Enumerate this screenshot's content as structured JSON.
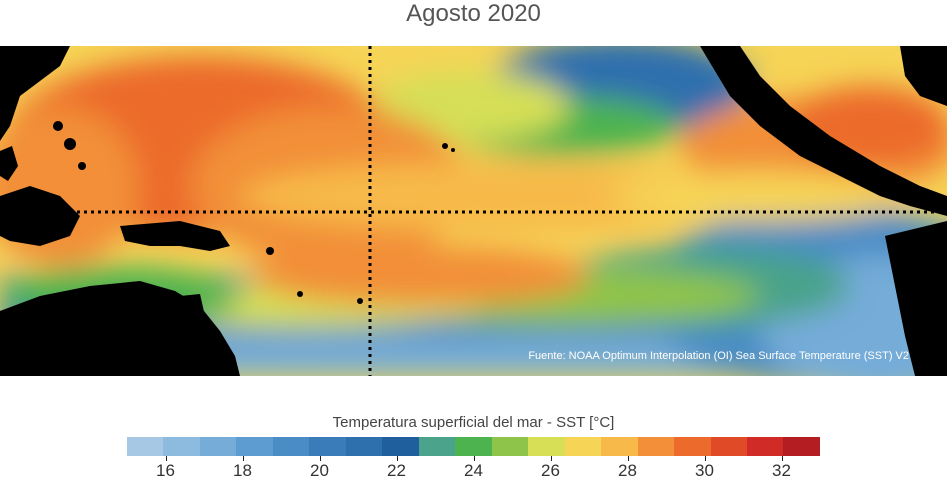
{
  "title": "Agosto 2020",
  "map": {
    "source_note": "Fuente: NOAA Optimum Interpolation (OI) Sea Surface Temperature (SST) V2",
    "land_color": "#000000"
  },
  "legend": {
    "title": "Temperatura superficial del mar - SST  [°C]",
    "min": 15,
    "max": 33,
    "colors": [
      "#a6c8e4",
      "#8dbbe0",
      "#75acd8",
      "#5d9cd0",
      "#4a8cc5",
      "#3a7cb9",
      "#2e6fae",
      "#1f5f9e",
      "#4aa38a",
      "#4db34f",
      "#8fc44a",
      "#d6df56",
      "#f6d456",
      "#f7ba4a",
      "#f28f38",
      "#ec6a2c",
      "#e04a26",
      "#d02b26",
      "#b41e22"
    ],
    "tick_labels": [
      "16",
      "18",
      "20",
      "22",
      "24",
      "26",
      "28",
      "30",
      "32"
    ],
    "tick_values": [
      16,
      18,
      20,
      22,
      24,
      26,
      28,
      30,
      32
    ]
  }
}
